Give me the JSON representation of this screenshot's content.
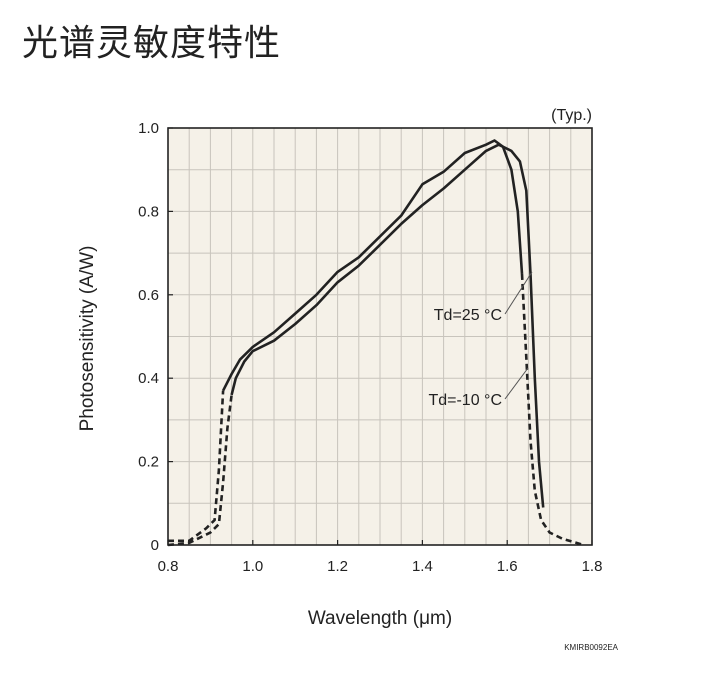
{
  "page": {
    "title": "光谱灵敏度特性"
  },
  "chart_data": {
    "type": "line",
    "title": "",
    "xlabel": "Wavelength (μm)",
    "ylabel": "Photosensitivity (A/W)",
    "xlim": [
      0.8,
      1.8
    ],
    "ylim": [
      0,
      1.0
    ],
    "x_ticks": [
      0.8,
      1.0,
      1.2,
      1.4,
      1.6,
      1.8
    ],
    "x_tick_labels": [
      "0.8",
      "1.0",
      "1.2",
      "1.4",
      "1.6",
      "1.8"
    ],
    "y_ticks": [
      0,
      0.2,
      0.4,
      0.6,
      0.8,
      1.0
    ],
    "y_tick_labels": [
      "0",
      "0.2",
      "0.4",
      "0.6",
      "0.8",
      "1.0"
    ],
    "grid": true,
    "background": "#f5f1e8",
    "line_color": "#222222",
    "note": "(Typ.)",
    "code": "KMIRB0092EA",
    "series": [
      {
        "name": "Td=25 °C",
        "solid": [
          [
            0.95,
            0.36
          ],
          [
            0.96,
            0.4
          ],
          [
            0.98,
            0.44
          ],
          [
            1.0,
            0.465
          ],
          [
            1.05,
            0.49
          ],
          [
            1.1,
            0.53
          ],
          [
            1.15,
            0.575
          ],
          [
            1.2,
            0.63
          ],
          [
            1.25,
            0.67
          ],
          [
            1.3,
            0.72
          ],
          [
            1.35,
            0.77
          ],
          [
            1.4,
            0.815
          ],
          [
            1.45,
            0.855
          ],
          [
            1.5,
            0.9
          ],
          [
            1.55,
            0.945
          ],
          [
            1.58,
            0.96
          ],
          [
            1.61,
            0.945
          ],
          [
            1.63,
            0.92
          ],
          [
            1.645,
            0.85
          ],
          [
            1.655,
            0.65
          ],
          [
            1.665,
            0.4
          ],
          [
            1.675,
            0.2
          ],
          [
            1.685,
            0.09
          ]
        ],
        "dashed": [
          [
            0.8,
            0.0
          ],
          [
            0.85,
            0.005
          ],
          [
            0.9,
            0.03
          ],
          [
            0.92,
            0.05
          ],
          [
            0.93,
            0.15
          ],
          [
            0.94,
            0.28
          ],
          [
            0.95,
            0.36
          ]
        ]
      },
      {
        "name": "Td=-10 °C",
        "solid": [
          [
            0.93,
            0.37
          ],
          [
            0.95,
            0.41
          ],
          [
            0.97,
            0.445
          ],
          [
            1.0,
            0.475
          ],
          [
            1.05,
            0.51
          ],
          [
            1.1,
            0.555
          ],
          [
            1.15,
            0.6
          ],
          [
            1.2,
            0.655
          ],
          [
            1.25,
            0.69
          ],
          [
            1.3,
            0.74
          ],
          [
            1.35,
            0.79
          ],
          [
            1.4,
            0.865
          ],
          [
            1.45,
            0.895
          ],
          [
            1.5,
            0.94
          ],
          [
            1.55,
            0.96
          ],
          [
            1.57,
            0.97
          ],
          [
            1.59,
            0.955
          ],
          [
            1.61,
            0.9
          ],
          [
            1.625,
            0.8
          ],
          [
            1.635,
            0.65
          ]
        ],
        "dashed": [
          [
            0.8,
            0.01
          ],
          [
            0.85,
            0.01
          ],
          [
            0.89,
            0.04
          ],
          [
            0.91,
            0.06
          ],
          [
            0.92,
            0.18
          ],
          [
            0.93,
            0.37
          ]
        ],
        "tail": [
          [
            1.635,
            0.65
          ],
          [
            1.645,
            0.45
          ],
          [
            1.655,
            0.25
          ],
          [
            1.665,
            0.13
          ],
          [
            1.68,
            0.06
          ],
          [
            1.7,
            0.03
          ],
          [
            1.73,
            0.015
          ],
          [
            1.77,
            0.003
          ],
          [
            1.78,
            0.0
          ]
        ]
      }
    ]
  }
}
